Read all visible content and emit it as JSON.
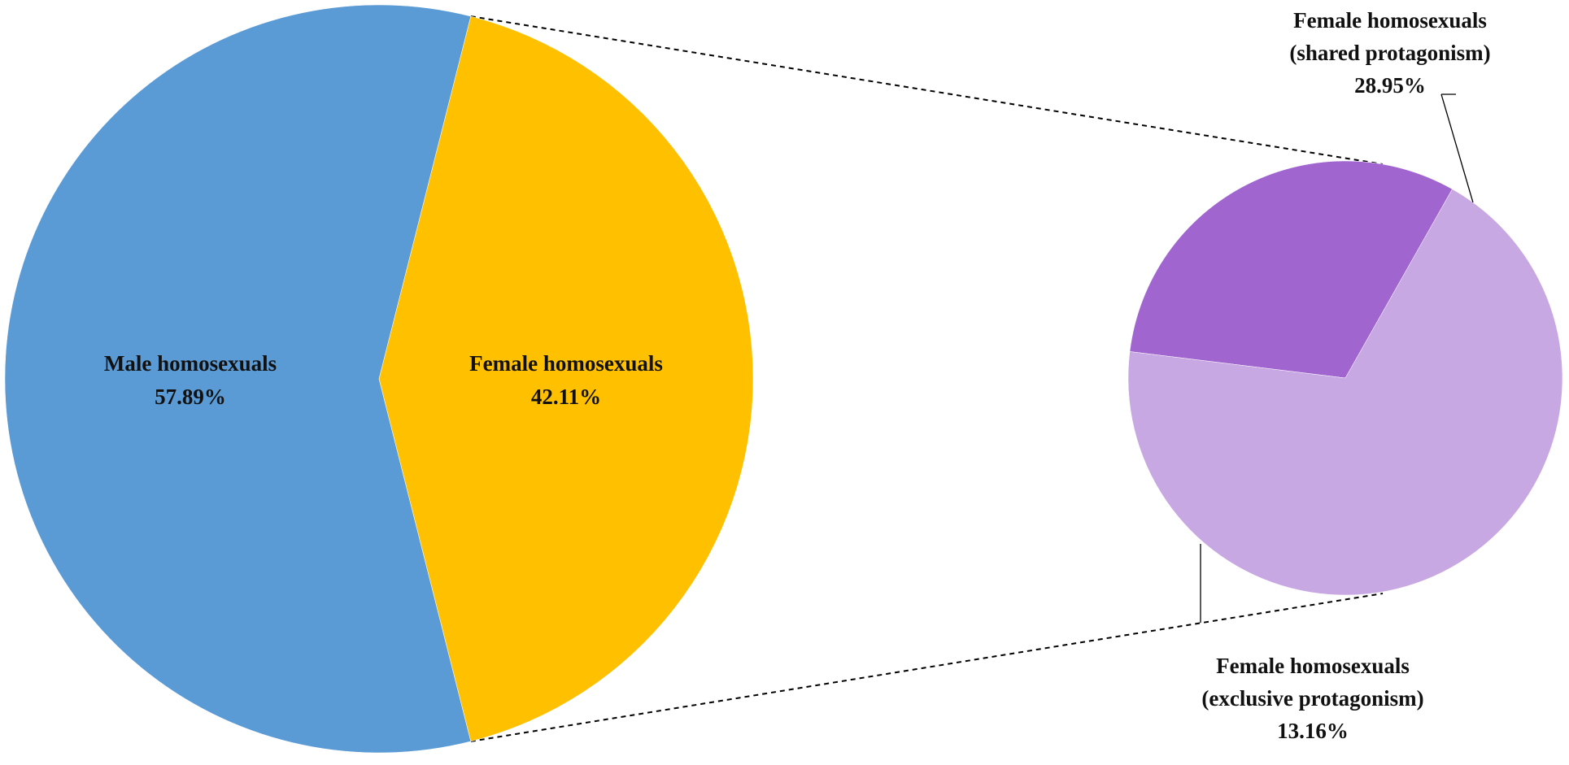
{
  "chart_data": {
    "type": "pie",
    "main": {
      "slices": [
        {
          "label": "Male homosexuals",
          "value": 57.89,
          "value_text": "57.89%",
          "color": "#5B9BD5"
        },
        {
          "label": "Female homosexuals",
          "value": 42.11,
          "value_text": "42.11%",
          "color": "#FFC000"
        }
      ]
    },
    "breakdown": {
      "of": "Female homosexuals",
      "slices": [
        {
          "label_lines": [
            "Female homosexuals",
            "(shared protagonism)"
          ],
          "value": 28.95,
          "value_text": "28.95%",
          "color": "#C8A8E2"
        },
        {
          "label_lines": [
            "Female homosexuals",
            "(exclusive protagonism)"
          ],
          "value": 13.16,
          "value_text": "13.16%",
          "color": "#A165D0"
        }
      ]
    },
    "connector_style": "dashed",
    "legend": "none"
  }
}
